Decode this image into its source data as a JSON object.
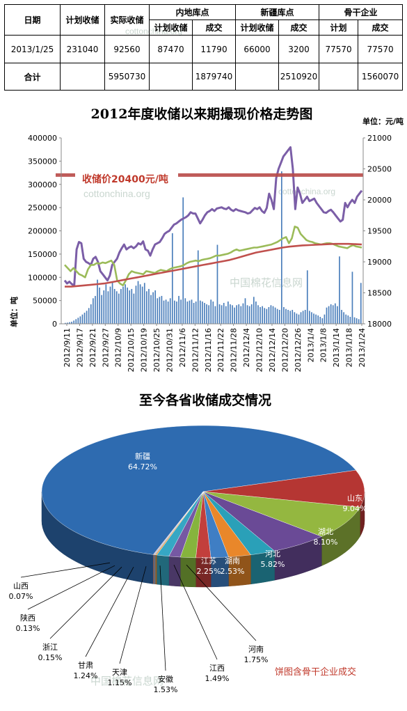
{
  "table": {
    "group_headers": [
      "内地库点",
      "新疆库点",
      "骨干企业"
    ],
    "col_headers": [
      "日期",
      "计划收储",
      "实际收储",
      "计划收储",
      "成交",
      "计划收储",
      "成交",
      "计划",
      "成交"
    ],
    "rows": [
      [
        "2013/1/25",
        "231040",
        "92560",
        "87470",
        "11790",
        "66000",
        "3200",
        "77570",
        "77570"
      ],
      [
        "合计",
        "",
        "5950730",
        "",
        "1879740",
        "",
        "2510920",
        "",
        "1560070"
      ]
    ]
  },
  "watermarks": [
    "cottonchina.org",
    "中国棉花信息网"
  ],
  "chart_data": [
    {
      "type": "bar+line",
      "title": "2012年度收储以来期撮现价格走势图",
      "unit_label": "单位：元/吨",
      "ylabel": "单位：吨",
      "y_left_ticks": [
        "0",
        "50000",
        "100000",
        "150000",
        "200000",
        "250000",
        "300000",
        "350000",
        "400000"
      ],
      "y_right_ticks": [
        "18000",
        "18500",
        "19000",
        "19500",
        "20000",
        "20500",
        "21000"
      ],
      "ylim_left": [
        0,
        400000
      ],
      "ylim_right": [
        18000,
        21000
      ],
      "x_tick_labels": [
        "2012/9/11",
        "2012/9/17",
        "2012/9/21",
        "2012/9/27",
        "2012/10/9",
        "2012/10/15",
        "2012/10/19",
        "2012/10/25",
        "2012/10/31",
        "2012/11/6",
        "2012/11/12",
        "2012/11/16",
        "2012/11/22",
        "2012/11/28",
        "2012/12/4",
        "2012/12/10",
        "2012/12/14",
        "2012/12/20",
        "2012/12/26",
        "2013/1/4",
        "2013/1/8",
        "2013/1/14",
        "2013/1/18",
        "2013/1/24"
      ],
      "annotation": "收储价20400元/吨",
      "reference_value": 20400,
      "colors": {
        "bars": "#4a7ebb",
        "purple": "#7b5ea7",
        "green": "#9bbb59",
        "red_line": "#c0504d",
        "reference": "#b94a48"
      },
      "bar_values": [
        2000,
        2500,
        3500,
        4500,
        7000,
        10000,
        13000,
        16000,
        20000,
        24000,
        28000,
        34000,
        42000,
        55000,
        60000,
        95000,
        78000,
        62000,
        72000,
        85000,
        70000,
        80000,
        90000,
        75000,
        70000,
        65000,
        75000,
        80000,
        85000,
        78000,
        72000,
        75000,
        65000,
        82000,
        92000,
        85000,
        80000,
        88000,
        70000,
        75000,
        62000,
        68000,
        72000,
        55000,
        58000,
        60000,
        50000,
        52000,
        48000,
        55000,
        195000,
        50000,
        48000,
        60000,
        52000,
        272000,
        55000,
        48000,
        50000,
        52000,
        45000,
        48000,
        158000,
        50000,
        48000,
        45000,
        42000,
        40000,
        52000,
        48000,
        38000,
        170000,
        42000,
        40000,
        45000,
        38000,
        48000,
        42000,
        40000,
        35000,
        40000,
        42000,
        38000,
        44000,
        55000,
        40000,
        38000,
        42000,
        58000,
        48000,
        40000,
        36000,
        38000,
        34000,
        32000,
        36000,
        40000,
        38000,
        35000,
        32000,
        30000,
        328000,
        36000,
        32000,
        30000,
        28000,
        30000,
        25000,
        22000,
        20000,
        25000,
        28000,
        30000,
        115000,
        28000,
        25000,
        22000,
        20000,
        18000,
        15000,
        12000,
        20000,
        35000,
        38000,
        42000,
        40000,
        44000,
        38000,
        145000,
        30000,
        25000,
        20000,
        18000,
        15000,
        112000,
        14000,
        12000,
        10000,
        88000
      ],
      "series": [
        {
          "name": "",
          "color": "#7b5ea7",
          "values": [
            18700,
            18650,
            18680,
            18640,
            18620,
            19200,
            19320,
            19300,
            19050,
            19000,
            18980,
            18950,
            19050,
            19080,
            19000,
            18850,
            18800,
            18750,
            18700,
            18780,
            18950,
            19000,
            19050,
            19150,
            19220,
            19280,
            19200,
            19230,
            19250,
            19220,
            19250,
            19300,
            19280,
            19330,
            19200,
            19180,
            19100,
            19200,
            19280,
            19300,
            19320,
            19380,
            19450,
            19480,
            19500,
            19550,
            19600,
            19620,
            19650,
            19680,
            19700,
            19720,
            19750,
            19800,
            19780,
            19780,
            19700,
            19620,
            19680,
            19750,
            19800,
            19820,
            19850,
            19820,
            19860,
            19870,
            19880,
            19860,
            19850,
            19880,
            19840,
            19820,
            19850,
            19830,
            19820,
            19810,
            19800,
            19780,
            19790,
            19830,
            19870,
            19850,
            19880,
            19820,
            19790,
            19870,
            20100,
            20000,
            19850,
            20350,
            20500,
            20600,
            20700,
            20750,
            20800,
            20850,
            20500,
            19850,
            20200,
            20100,
            19950,
            20000,
            20050,
            19980,
            20000,
            20020,
            19950,
            19900,
            19850,
            19800,
            19790,
            19820,
            19840,
            19800,
            19750,
            19700,
            19650,
            19680,
            19950,
            19880,
            19950,
            20000,
            19950,
            20050,
            20100,
            20150
          ]
        },
        {
          "name": "",
          "color": "#9bbb59",
          "values": [
            18950,
            18900,
            18850,
            18900,
            18850,
            18800,
            18780,
            18750,
            18880,
            18950,
            18950,
            18980,
            18970,
            18990,
            18980,
            19000,
            19020,
            18950,
            18700,
            18650,
            18620,
            18700,
            18800,
            18850,
            18830,
            18820,
            18810,
            18800,
            18850,
            18840,
            18830,
            18820,
            18850,
            18870,
            18860,
            18850,
            18880,
            18900,
            18910,
            18920,
            18930,
            18950,
            18980,
            19000,
            19010,
            19020,
            19010,
            19030,
            19040,
            19050,
            19060,
            19080,
            19100,
            19100,
            19110,
            19120,
            19130,
            19150,
            19180,
            19200,
            19180,
            19190,
            19200,
            19210,
            19220,
            19230,
            19230,
            19240,
            19250,
            19260,
            19270,
            19280,
            19300,
            19320,
            19350,
            19380,
            19400,
            19300,
            19380,
            19570,
            19550,
            19450,
            19400,
            19350,
            19330,
            19320,
            19300,
            19290,
            19280,
            19290,
            19300,
            19300,
            19290,
            19270,
            19250,
            19240,
            19230,
            19220,
            19250,
            19270,
            19250,
            19240,
            19230
          ]
        },
        {
          "name": "",
          "color": "#c0504d",
          "values": [
            18600,
            18600,
            18610,
            18620,
            18630,
            18640,
            18650,
            18670,
            18690,
            18710,
            18730,
            18750,
            18770,
            18790,
            18810,
            18830,
            18850,
            18870,
            18890,
            18910,
            18930,
            18950,
            18970,
            18990,
            19010,
            19030,
            19060,
            19090,
            19120,
            19150,
            19170,
            19190,
            19210,
            19230,
            19245,
            19255,
            19265,
            19270,
            19275,
            19280,
            19285,
            19290,
            19290,
            19290,
            19285,
            19280
          ]
        }
      ]
    },
    {
      "type": "pie",
      "title": "至今各省收储成交情况",
      "note": "饼图含骨干企业成交",
      "slices": [
        {
          "label": "新疆",
          "pct": "64.72%",
          "value": 64.72,
          "color": "#2e6bb0"
        },
        {
          "label": "山东",
          "pct": "9.04%",
          "value": 9.04,
          "color": "#b53633"
        },
        {
          "label": "湖北",
          "pct": "8.10%",
          "value": 8.1,
          "color": "#94b740"
        },
        {
          "label": "河北",
          "pct": "5.82%",
          "value": 5.82,
          "color": "#6a4a96"
        },
        {
          "label": "湖南",
          "pct": "2.53%",
          "value": 2.53,
          "color": "#2aa0b8"
        },
        {
          "label": "江苏",
          "pct": "2.25%",
          "value": 2.25,
          "color": "#e9872a"
        },
        {
          "label": "河南",
          "pct": "1.75%",
          "value": 1.75,
          "color": "#3f7ec4"
        },
        {
          "label": "江西",
          "pct": "1.49%",
          "value": 1.49,
          "color": "#c23f3c"
        },
        {
          "label": "安徽",
          "pct": "1.53%",
          "value": 1.53,
          "color": "#86b43d"
        },
        {
          "label": "天津",
          "pct": "1.15%",
          "value": 1.15,
          "color": "#7658a3"
        },
        {
          "label": "甘肃",
          "pct": "1.24%",
          "value": 1.24,
          "color": "#36a7c4"
        },
        {
          "label": "浙江",
          "pct": "0.15%",
          "value": 0.15,
          "color": "#f09a3a"
        },
        {
          "label": "陕西",
          "pct": "0.13%",
          "value": 0.13,
          "color": "#9bb7dd"
        },
        {
          "label": "山西",
          "pct": "0.07%",
          "value": 0.07,
          "color": "#d59c9a"
        }
      ]
    }
  ]
}
